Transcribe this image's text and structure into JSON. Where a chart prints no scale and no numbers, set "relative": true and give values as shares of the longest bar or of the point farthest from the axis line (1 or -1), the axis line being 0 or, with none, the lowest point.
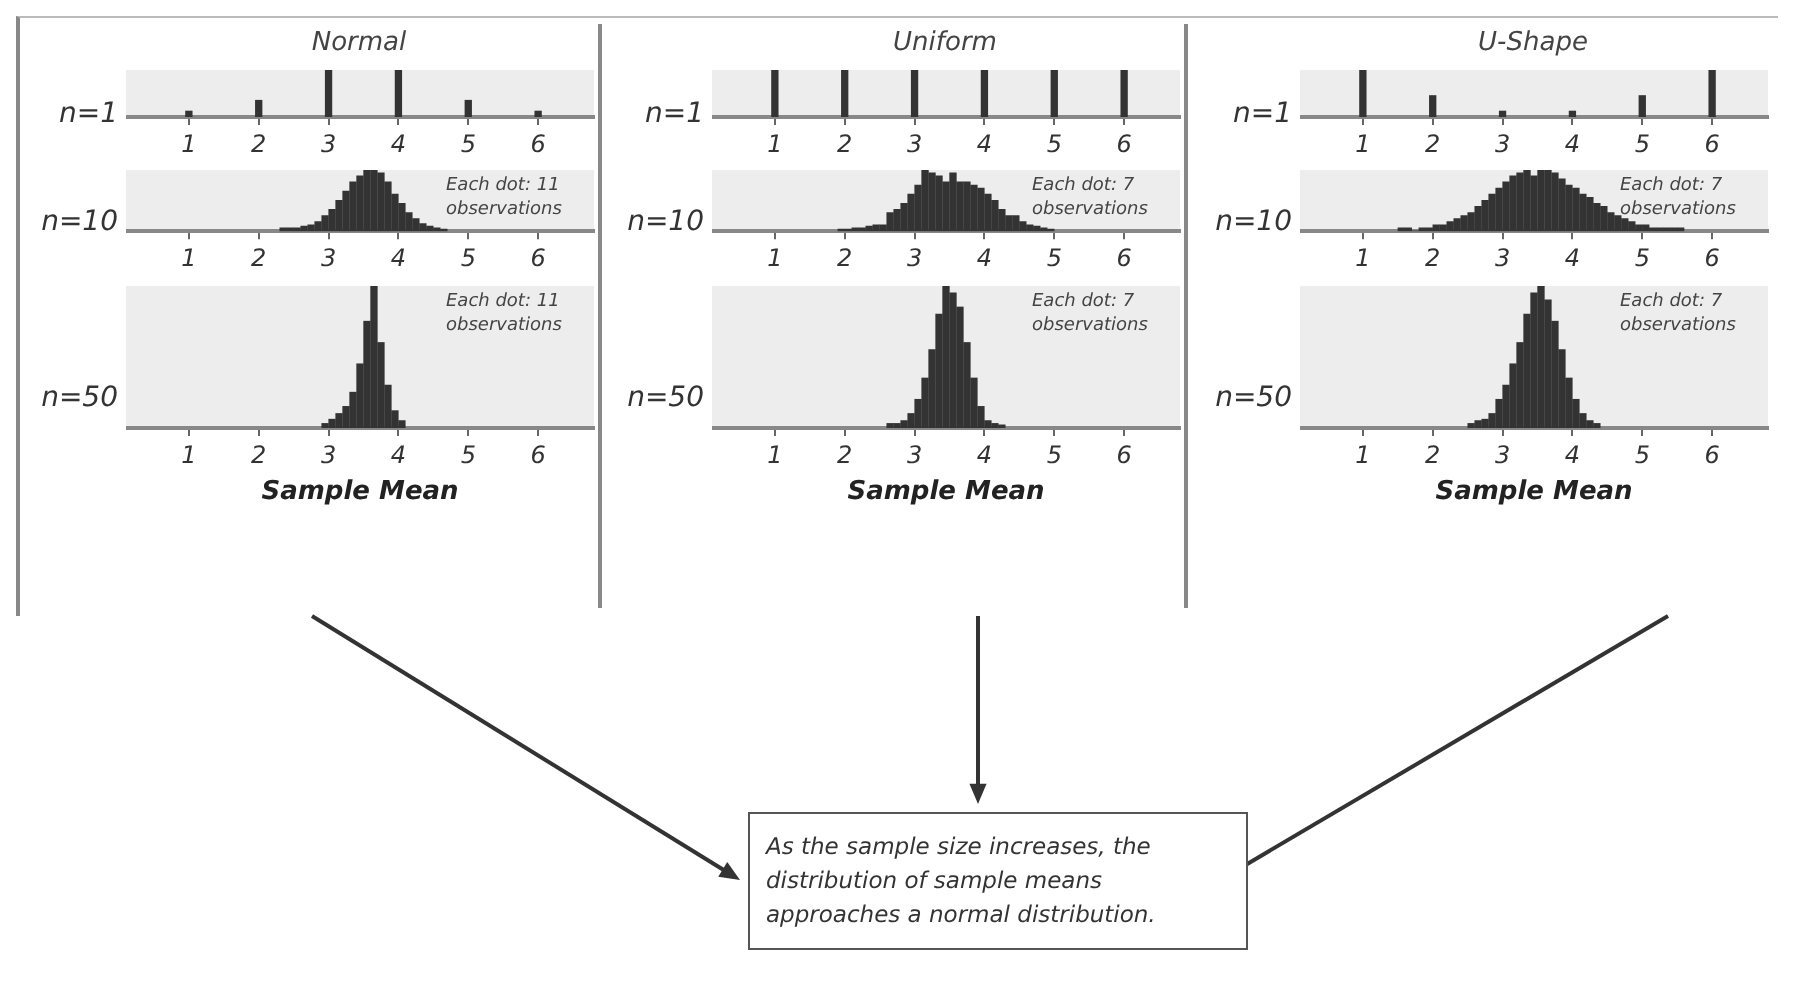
{
  "chart_data": [
    {
      "type": "bar",
      "title": "Normal",
      "ylabel": "n=1",
      "relative": true,
      "x": [
        1,
        2,
        3,
        4,
        5,
        6
      ],
      "values": [
        0.12,
        0.35,
        1,
        1,
        0.35,
        0.12
      ],
      "color": "#333333",
      "xlim": [
        0.1,
        6.8
      ],
      "xticks": [
        1,
        2,
        3,
        4,
        5,
        6
      ]
    },
    {
      "type": "bar",
      "ylabel": "n=10",
      "relative": true,
      "x": [
        2.35,
        2.45,
        2.55,
        2.65,
        2.75,
        2.85,
        2.95,
        3.05,
        3.15,
        3.25,
        3.35,
        3.45,
        3.55,
        3.65,
        3.75,
        3.85,
        3.95,
        4.05,
        4.15,
        4.25,
        4.35,
        4.45,
        4.55,
        4.65
      ],
      "values": [
        0.05,
        0.05,
        0.05,
        0.08,
        0.1,
        0.15,
        0.25,
        0.35,
        0.5,
        0.65,
        0.8,
        0.9,
        1,
        1,
        0.95,
        0.8,
        0.6,
        0.45,
        0.3,
        0.2,
        0.12,
        0.08,
        0.05,
        0.03
      ],
      "color": "#333333",
      "xlim": [
        0.1,
        6.8
      ],
      "xticks": [
        1,
        2,
        3,
        4,
        5,
        6
      ],
      "annotations": [
        "Each dot: 11 observations"
      ]
    },
    {
      "type": "bar",
      "ylabel": "n=50",
      "xlabel": "Sample Mean",
      "relative": true,
      "x": [
        2.95,
        3.05,
        3.15,
        3.25,
        3.35,
        3.45,
        3.55,
        3.65,
        3.75,
        3.85,
        3.95,
        4.05
      ],
      "values": [
        0.03,
        0.06,
        0.1,
        0.15,
        0.25,
        0.45,
        0.75,
        1,
        0.6,
        0.3,
        0.12,
        0.05
      ],
      "color": "#333333",
      "xlim": [
        0.1,
        6.8
      ],
      "xticks": [
        1,
        2,
        3,
        4,
        5,
        6
      ],
      "annotations": [
        "Each dot: 11 observations"
      ]
    },
    {
      "type": "bar",
      "title": "Uniform",
      "ylabel": "n=1",
      "relative": true,
      "x": [
        1,
        2,
        3,
        4,
        5,
        6
      ],
      "values": [
        1,
        1,
        1,
        1,
        1,
        1
      ],
      "color": "#333333",
      "xlim": [
        0.1,
        6.8
      ],
      "xticks": [
        1,
        2,
        3,
        4,
        5,
        6
      ]
    },
    {
      "type": "bar",
      "ylabel": "n=10",
      "relative": true,
      "x": [
        1.95,
        2.05,
        2.15,
        2.25,
        2.35,
        2.45,
        2.55,
        2.65,
        2.75,
        2.85,
        2.95,
        3.05,
        3.15,
        3.25,
        3.35,
        3.45,
        3.55,
        3.65,
        3.75,
        3.85,
        3.95,
        4.05,
        4.15,
        4.25,
        4.35,
        4.45,
        4.55,
        4.65,
        4.75,
        4.85,
        4.95
      ],
      "values": [
        0.03,
        0.03,
        0.05,
        0.05,
        0.08,
        0.1,
        0.1,
        0.3,
        0.35,
        0.45,
        0.6,
        0.75,
        1,
        0.95,
        0.9,
        0.8,
        0.95,
        0.8,
        0.8,
        0.75,
        0.7,
        0.6,
        0.5,
        0.35,
        0.25,
        0.25,
        0.15,
        0.1,
        0.08,
        0.05,
        0.03
      ],
      "color": "#333333",
      "xlim": [
        0.1,
        6.8
      ],
      "xticks": [
        1,
        2,
        3,
        4,
        5,
        6
      ],
      "annotations": [
        "Each dot: 7 observations"
      ]
    },
    {
      "type": "bar",
      "ylabel": "n=50",
      "xlabel": "Sample Mean",
      "relative": true,
      "x": [
        2.65,
        2.75,
        2.85,
        2.95,
        3.05,
        3.15,
        3.25,
        3.35,
        3.45,
        3.55,
        3.65,
        3.75,
        3.85,
        3.95,
        4.05,
        4.15,
        4.25
      ],
      "values": [
        0.03,
        0.03,
        0.05,
        0.1,
        0.2,
        0.35,
        0.55,
        0.8,
        1,
        0.95,
        0.85,
        0.6,
        0.35,
        0.15,
        0.05,
        0.03,
        0.02
      ],
      "color": "#333333",
      "xlim": [
        0.1,
        6.8
      ],
      "xticks": [
        1,
        2,
        3,
        4,
        5,
        6
      ],
      "annotations": [
        "Each dot: 7 observations"
      ]
    },
    {
      "type": "bar",
      "title": "U-Shape",
      "ylabel": "n=1",
      "relative": true,
      "x": [
        1,
        2,
        3,
        4,
        5,
        6
      ],
      "values": [
        1,
        0.45,
        0.12,
        0.12,
        0.45,
        1
      ],
      "color": "#333333",
      "xlim": [
        0.1,
        6.8
      ],
      "xticks": [
        1,
        2,
        3,
        4,
        5,
        6
      ]
    },
    {
      "type": "bar",
      "ylabel": "n=10",
      "relative": true,
      "x": [
        1.55,
        1.65,
        1.75,
        1.85,
        1.95,
        2.05,
        2.15,
        2.25,
        2.35,
        2.45,
        2.55,
        2.65,
        2.75,
        2.85,
        2.95,
        3.05,
        3.15,
        3.25,
        3.35,
        3.45,
        3.55,
        3.65,
        3.75,
        3.85,
        3.95,
        4.05,
        4.15,
        4.25,
        4.35,
        4.45,
        4.55,
        4.65,
        4.75,
        4.85,
        4.95,
        5.05,
        5.15,
        5.25,
        5.35,
        5.45,
        5.55
      ],
      "values": [
        0.05,
        0.05,
        0,
        0.05,
        0.05,
        0.1,
        0.1,
        0.15,
        0.2,
        0.25,
        0.3,
        0.4,
        0.5,
        0.6,
        0.7,
        0.8,
        0.9,
        0.95,
        1,
        0.9,
        1,
        1,
        0.95,
        0.85,
        0.75,
        0.7,
        0.6,
        0.55,
        0.45,
        0.4,
        0.3,
        0.25,
        0.2,
        0.15,
        0.1,
        0.1,
        0.05,
        0.05,
        0.05,
        0.05,
        0.05
      ],
      "color": "#333333",
      "xlim": [
        0.1,
        6.8
      ],
      "xticks": [
        1,
        2,
        3,
        4,
        5,
        6
      ],
      "annotations": [
        "Each dot: 7 observations"
      ]
    },
    {
      "type": "bar",
      "ylabel": "n=50",
      "xlabel": "Sample Mean",
      "relative": true,
      "x": [
        2.55,
        2.65,
        2.75,
        2.85,
        2.95,
        3.05,
        3.15,
        3.25,
        3.35,
        3.45,
        3.55,
        3.65,
        3.75,
        3.85,
        3.95,
        4.05,
        4.15,
        4.25,
        4.35
      ],
      "values": [
        0.03,
        0.05,
        0.06,
        0.1,
        0.2,
        0.3,
        0.45,
        0.6,
        0.8,
        0.95,
        1,
        0.9,
        0.75,
        0.55,
        0.35,
        0.2,
        0.1,
        0.05,
        0.03
      ],
      "color": "#333333",
      "xlim": [
        0.1,
        6.8
      ],
      "xticks": [
        1,
        2,
        3,
        4,
        5,
        6
      ],
      "annotations": [
        "Each dot: 7 observations"
      ]
    },
    {
      "type": "other",
      "annotations": [
        "As the sample size increases, the distribution of sample means approaches a normal distribution."
      ]
    }
  ]
}
